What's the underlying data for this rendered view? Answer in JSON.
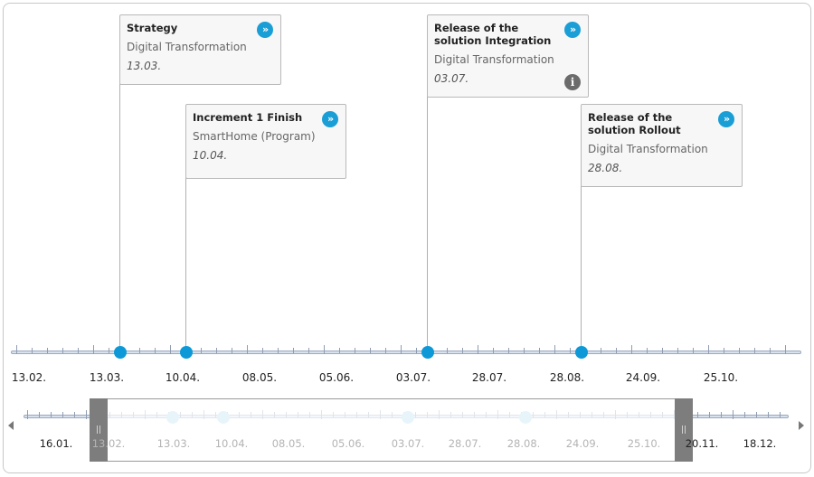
{
  "milestones": [
    {
      "title": "Strategy",
      "subtitle": "Digital Transformation",
      "date": "13.03.",
      "info": false
    },
    {
      "title": "Increment 1 Finish",
      "subtitle": "SmartHome (Program)",
      "date": "10.04.",
      "info": false
    },
    {
      "title": "Release of the solution Integration",
      "subtitle": "Digital Transformation",
      "date": "03.07.",
      "info": true
    },
    {
      "title": "Release of the solution Rollout",
      "subtitle": "Digital Transformation",
      "date": "28.08.",
      "info": false
    }
  ],
  "icons": {
    "navigate": "double-chevron-right-icon",
    "info": "info-icon"
  },
  "accent_color": "#1a9ed6",
  "main_axis_labels": [
    "13.02.",
    "13.03.",
    "10.04.",
    "08.05.",
    "05.06.",
    "03.07.",
    "28.07.",
    "28.08.",
    "24.09.",
    "25.10."
  ],
  "navigator_labels": [
    "16.01.",
    "13.02.",
    "13.03.",
    "10.04.",
    "08.05.",
    "05.06.",
    "03.07.",
    "28.07.",
    "28.08.",
    "24.09.",
    "25.10.",
    "20.11.",
    "18.12."
  ]
}
